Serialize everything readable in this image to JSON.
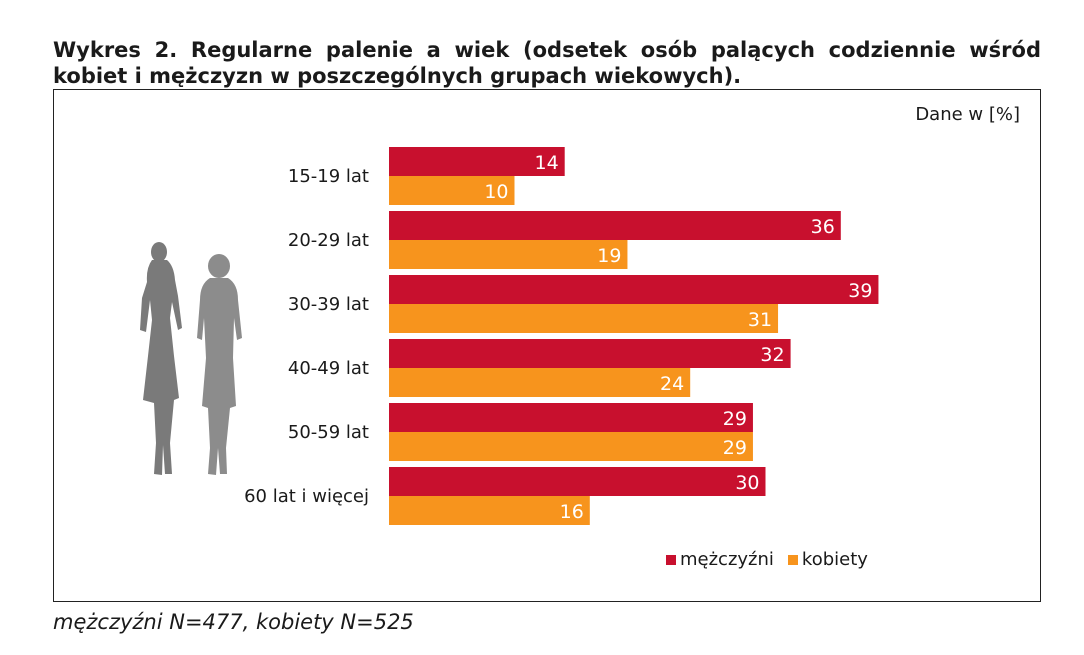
{
  "title": "Wykres 2. Regularne palenie a wiek (odsetek osób palących codziennie wśród kobiet i mężczyzn w poszczególnych grupach wiekowych).",
  "units_note": "Dane w [%]",
  "footnote": "mężczyźni N=477, kobiety N=525",
  "colors": {
    "men": "#c8102e",
    "women": "#f7941d"
  },
  "chart_data": {
    "type": "bar",
    "orientation": "horizontal",
    "categories": [
      "15-19 lat",
      "20-29 lat",
      "30-39 lat",
      "40-49 lat",
      "50-59 lat",
      "60 lat i więcej"
    ],
    "series": [
      {
        "name": "mężczyźni",
        "values": [
          14,
          36,
          39,
          32,
          29,
          30
        ]
      },
      {
        "name": "kobiety",
        "values": [
          10,
          19,
          31,
          24,
          29,
          16
        ]
      }
    ],
    "xlim": [
      0,
      40
    ],
    "legend_position": "bottom-right",
    "grid": false
  },
  "decoration": {
    "icons": [
      "woman-silhouette-icon",
      "elderly-woman-silhouette-icon"
    ]
  }
}
